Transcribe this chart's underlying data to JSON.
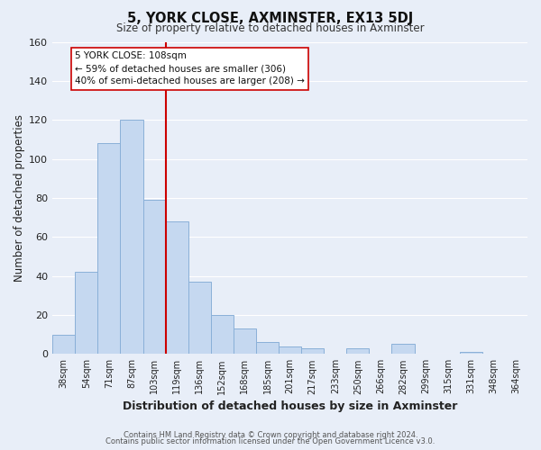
{
  "title": "5, YORK CLOSE, AXMINSTER, EX13 5DJ",
  "subtitle": "Size of property relative to detached houses in Axminster",
  "xlabel": "Distribution of detached houses by size in Axminster",
  "ylabel": "Number of detached properties",
  "bar_labels": [
    "38sqm",
    "54sqm",
    "71sqm",
    "87sqm",
    "103sqm",
    "119sqm",
    "136sqm",
    "152sqm",
    "168sqm",
    "185sqm",
    "201sqm",
    "217sqm",
    "233sqm",
    "250sqm",
    "266sqm",
    "282sqm",
    "299sqm",
    "315sqm",
    "331sqm",
    "348sqm",
    "364sqm"
  ],
  "bar_values": [
    10,
    42,
    108,
    120,
    79,
    68,
    37,
    20,
    13,
    6,
    4,
    3,
    0,
    3,
    0,
    5,
    0,
    0,
    1,
    0,
    0
  ],
  "bar_color": "#c5d8f0",
  "bar_edge_color": "#8ab0d8",
  "vline_x_index": 4,
  "vline_color": "#cc0000",
  "ylim": [
    0,
    160
  ],
  "yticks": [
    0,
    20,
    40,
    60,
    80,
    100,
    120,
    140,
    160
  ],
  "annotation_title": "5 YORK CLOSE: 108sqm",
  "annotation_line1": "← 59% of detached houses are smaller (306)",
  "annotation_line2": "40% of semi-detached houses are larger (208) →",
  "annotation_box_color": "#ffffff",
  "annotation_box_edge": "#cc0000",
  "footer1": "Contains HM Land Registry data © Crown copyright and database right 2024.",
  "footer2": "Contains public sector information licensed under the Open Government Licence v3.0.",
  "fig_background": "#e8eef8",
  "plot_background": "#e8eef8",
  "grid_color": "#ffffff"
}
